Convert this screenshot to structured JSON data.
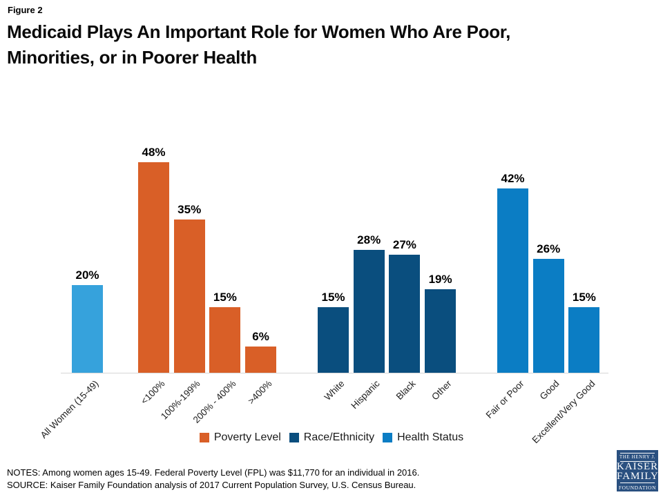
{
  "figure_label": "Figure 2",
  "title_line1": "Medicaid Plays An Important Role for Women Who Are Poor,",
  "title_line2": "Minorities, or in Poorer Health",
  "chart_data": {
    "type": "bar",
    "unit": "%",
    "ylim": [
      0,
      50
    ],
    "gridlines": false,
    "y_axis_visible": false,
    "baseline_color": "#d6d6d6",
    "groups": [
      {
        "name": "All Women",
        "color": "#36a2dc",
        "bars": [
          {
            "label": "All Women (15-49)",
            "value": 20
          }
        ]
      },
      {
        "name": "Poverty Level",
        "color": "#d95f27",
        "bars": [
          {
            "label": "<100%",
            "value": 48
          },
          {
            "label": "100%-199%",
            "value": 35
          },
          {
            "label": "200% - 400%",
            "value": 15
          },
          {
            "label": ">400%",
            "value": 6
          }
        ]
      },
      {
        "name": "Race/Ethnicity",
        "color": "#0a4e7e",
        "bars": [
          {
            "label": "White",
            "value": 15
          },
          {
            "label": "Hispanic",
            "value": 28
          },
          {
            "label": "Black",
            "value": 27
          },
          {
            "label": "Other",
            "value": 19
          }
        ]
      },
      {
        "name": "Health Status",
        "color": "#0b7dc4",
        "bars": [
          {
            "label": "Fair or Poor",
            "value": 42
          },
          {
            "label": "Good",
            "value": 26
          },
          {
            "label": "Excellent/Very Good",
            "value": 15
          }
        ]
      }
    ],
    "legend": [
      {
        "label": "Poverty Level",
        "color": "#d95f27"
      },
      {
        "label": "Race/Ethnicity",
        "color": "#0a4e7e"
      },
      {
        "label": "Health Status",
        "color": "#0b7dc4"
      }
    ],
    "legend_position": "bottom-center"
  },
  "notes_line1": "NOTES: Among women ages 15-49. Federal Poverty Level (FPL) was $11,770 for an individual in 2016.",
  "notes_line2": "SOURCE: Kaiser Family Foundation analysis of 2017 Current Population Survey, U.S. Census Bureau.",
  "logo": {
    "line1": "THE HENRY J.",
    "line2": "KAISER",
    "line3": "FAMILY",
    "line4": "FOUNDATION",
    "background": "#2a5080"
  }
}
